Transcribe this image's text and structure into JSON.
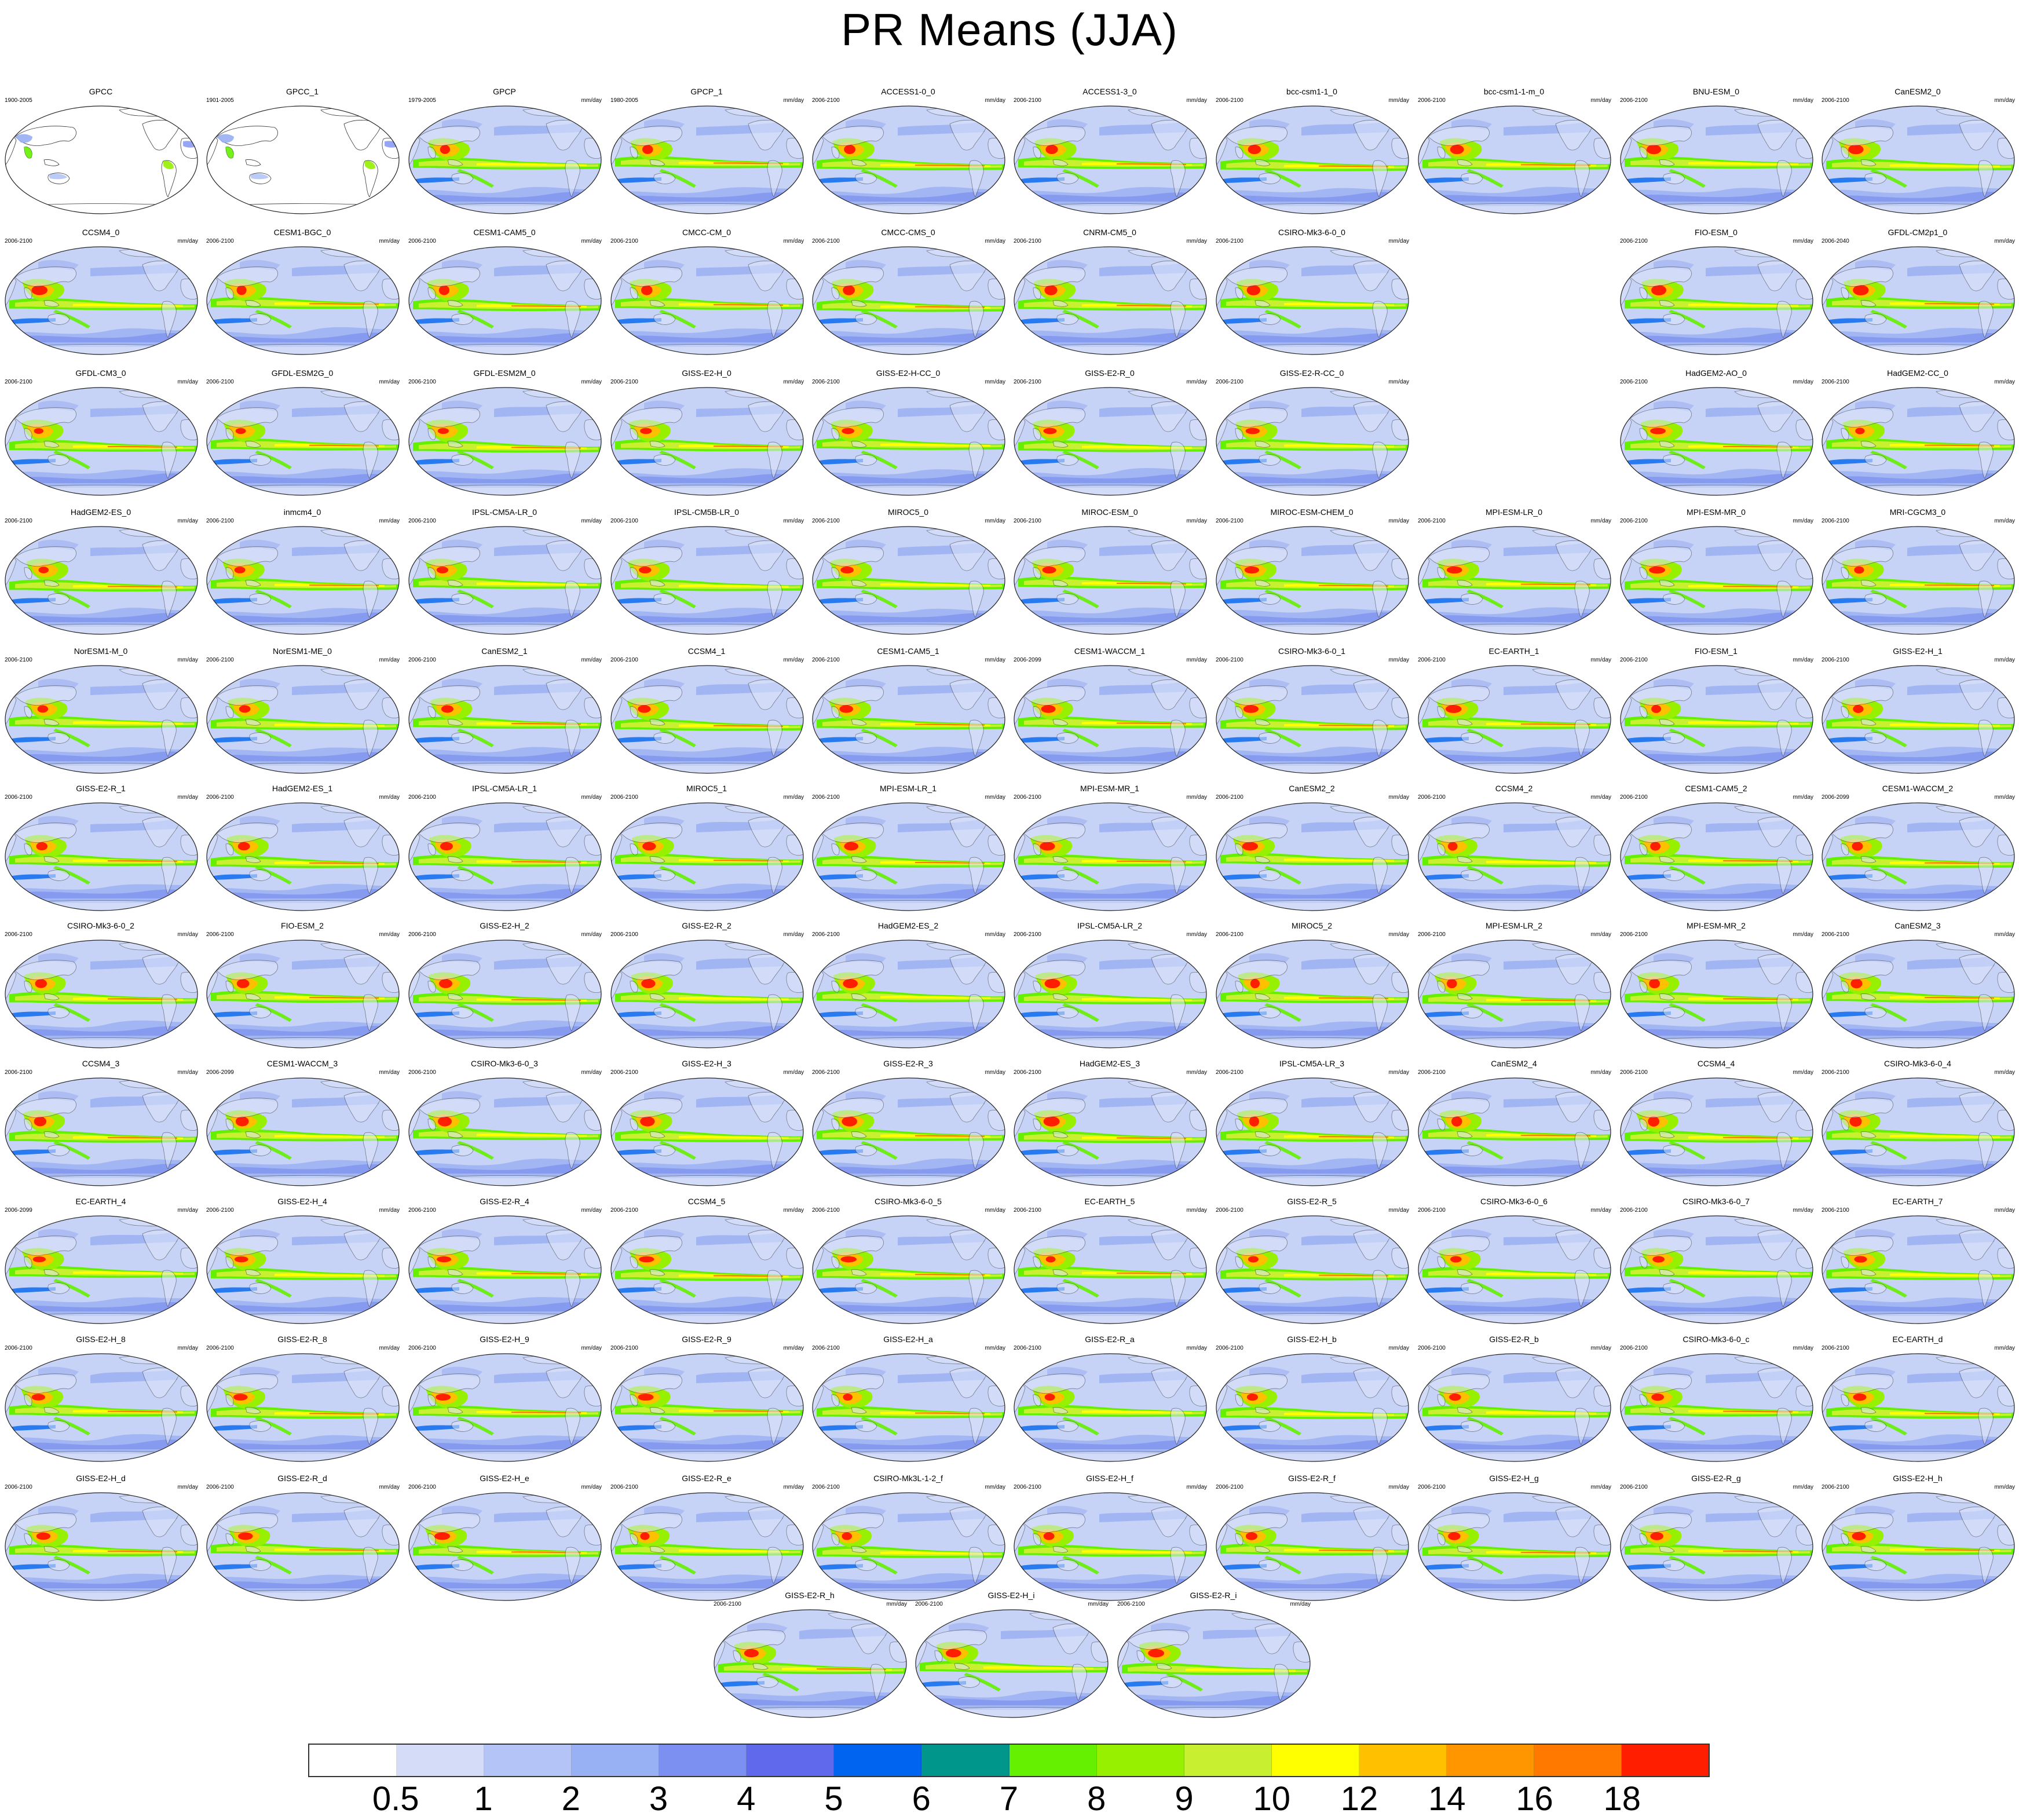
{
  "title": "PR Means (JJA)",
  "unit_label": "mm/day",
  "panels": [
    {
      "name": "GPCC",
      "years": "1900-2005",
      "obs": true
    },
    {
      "name": "GPCC_1",
      "years": "1901-2005",
      "obs": true
    },
    {
      "name": "GPCP",
      "years": "1979-2005"
    },
    {
      "name": "GPCP_1",
      "years": "1980-2005"
    },
    {
      "name": "ACCESS1-0_0",
      "years": "2006-2100"
    },
    {
      "name": "ACCESS1-3_0",
      "years": "2006-2100"
    },
    {
      "name": "bcc-csm1-1_0",
      "years": "2006-2100"
    },
    {
      "name": "bcc-csm1-1-m_0",
      "years": "2006-2100"
    },
    {
      "name": "BNU-ESM_0",
      "years": "2006-2100"
    },
    {
      "name": "CanESM2_0",
      "years": "2006-2100"
    },
    {
      "name": "CCSM4_0",
      "years": "2006-2100"
    },
    {
      "name": "CESM1-BGC_0",
      "years": "2006-2100"
    },
    {
      "name": "CESM1-CAM5_0",
      "years": "2006-2100"
    },
    {
      "name": "CMCC-CM_0",
      "years": "2006-2100"
    },
    {
      "name": "CMCC-CMS_0",
      "years": "2006-2100"
    },
    {
      "name": "CNRM-CM5_0",
      "years": "2006-2100"
    },
    {
      "name": "CSIRO-Mk3-6-0_0",
      "years": "2006-2100"
    },
    null,
    {
      "name": "FIO-ESM_0",
      "years": "2006-2100"
    },
    {
      "name": "GFDL-CM2p1_0",
      "years": "2006-2040"
    },
    {
      "name": "GFDL-CM3_0",
      "years": "2006-2100"
    },
    {
      "name": "GFDL-ESM2G_0",
      "years": "2006-2100"
    },
    {
      "name": "GFDL-ESM2M_0",
      "years": "2006-2100"
    },
    {
      "name": "GISS-E2-H_0",
      "years": "2006-2100"
    },
    {
      "name": "GISS-E2-H-CC_0",
      "years": "2006-2100"
    },
    {
      "name": "GISS-E2-R_0",
      "years": "2006-2100"
    },
    {
      "name": "GISS-E2-R-CC_0",
      "years": "2006-2100"
    },
    null,
    {
      "name": "HadGEM2-AO_0",
      "years": "2006-2100"
    },
    {
      "name": "HadGEM2-CC_0",
      "years": "2006-2100"
    },
    {
      "name": "HadGEM2-ES_0",
      "years": "2006-2100"
    },
    {
      "name": "inmcm4_0",
      "years": "2006-2100"
    },
    {
      "name": "IPSL-CM5A-LR_0",
      "years": "2006-2100"
    },
    {
      "name": "IPSL-CM5B-LR_0",
      "years": "2006-2100"
    },
    {
      "name": "MIROC5_0",
      "years": "2006-2100"
    },
    {
      "name": "MIROC-ESM_0",
      "years": "2006-2100"
    },
    {
      "name": "MIROC-ESM-CHEM_0",
      "years": "2006-2100"
    },
    {
      "name": "MPI-ESM-LR_0",
      "years": "2006-2100"
    },
    {
      "name": "MPI-ESM-MR_0",
      "years": "2006-2100"
    },
    {
      "name": "MRI-CGCM3_0",
      "years": "2006-2100"
    },
    {
      "name": "NorESM1-M_0",
      "years": "2006-2100"
    },
    {
      "name": "NorESM1-ME_0",
      "years": "2006-2100"
    },
    {
      "name": "CanESM2_1",
      "years": "2006-2100"
    },
    {
      "name": "CCSM4_1",
      "years": "2006-2100"
    },
    {
      "name": "CESM1-CAM5_1",
      "years": "2006-2100"
    },
    {
      "name": "CESM1-WACCM_1",
      "years": "2006-2099"
    },
    {
      "name": "CSIRO-Mk3-6-0_1",
      "years": "2006-2100"
    },
    {
      "name": "EC-EARTH_1",
      "years": "2006-2100"
    },
    {
      "name": "FIO-ESM_1",
      "years": "2006-2100"
    },
    {
      "name": "GISS-E2-H_1",
      "years": "2006-2100"
    },
    {
      "name": "GISS-E2-R_1",
      "years": "2006-2100"
    },
    {
      "name": "HadGEM2-ES_1",
      "years": "2006-2100"
    },
    {
      "name": "IPSL-CM5A-LR_1",
      "years": "2006-2100"
    },
    {
      "name": "MIROC5_1",
      "years": "2006-2100"
    },
    {
      "name": "MPI-ESM-LR_1",
      "years": "2006-2100"
    },
    {
      "name": "MPI-ESM-MR_1",
      "years": "2006-2100"
    },
    {
      "name": "CanESM2_2",
      "years": "2006-2100"
    },
    {
      "name": "CCSM4_2",
      "years": "2006-2100"
    },
    {
      "name": "CESM1-CAM5_2",
      "years": "2006-2100"
    },
    {
      "name": "CESM1-WACCM_2",
      "years": "2006-2099"
    },
    {
      "name": "CSIRO-Mk3-6-0_2",
      "years": "2006-2100"
    },
    {
      "name": "FIO-ESM_2",
      "years": "2006-2100"
    },
    {
      "name": "GISS-E2-H_2",
      "years": "2006-2100"
    },
    {
      "name": "GISS-E2-R_2",
      "years": "2006-2100"
    },
    {
      "name": "HadGEM2-ES_2",
      "years": "2006-2100"
    },
    {
      "name": "IPSL-CM5A-LR_2",
      "years": "2006-2100"
    },
    {
      "name": "MIROC5_2",
      "years": "2006-2100"
    },
    {
      "name": "MPI-ESM-LR_2",
      "years": "2006-2100"
    },
    {
      "name": "MPI-ESM-MR_2",
      "years": "2006-2100"
    },
    {
      "name": "CanESM2_3",
      "years": "2006-2100"
    },
    {
      "name": "CCSM4_3",
      "years": "2006-2100"
    },
    {
      "name": "CESM1-WACCM_3",
      "years": "2006-2099"
    },
    {
      "name": "CSIRO-Mk3-6-0_3",
      "years": "2006-2100"
    },
    {
      "name": "GISS-E2-H_3",
      "years": "2006-2100"
    },
    {
      "name": "GISS-E2-R_3",
      "years": "2006-2100"
    },
    {
      "name": "HadGEM2-ES_3",
      "years": "2006-2100"
    },
    {
      "name": "IPSL-CM5A-LR_3",
      "years": "2006-2100"
    },
    {
      "name": "CanESM2_4",
      "years": "2006-2100"
    },
    {
      "name": "CCSM4_4",
      "years": "2006-2100"
    },
    {
      "name": "CSIRO-Mk3-6-0_4",
      "years": "2006-2100"
    },
    {
      "name": "EC-EARTH_4",
      "years": "2006-2099"
    },
    {
      "name": "GISS-E2-H_4",
      "years": "2006-2100"
    },
    {
      "name": "GISS-E2-R_4",
      "years": "2006-2100"
    },
    {
      "name": "CCSM4_5",
      "years": "2006-2100"
    },
    {
      "name": "CSIRO-Mk3-6-0_5",
      "years": "2006-2100"
    },
    {
      "name": "EC-EARTH_5",
      "years": "2006-2100"
    },
    {
      "name": "GISS-E2-R_5",
      "years": "2006-2100"
    },
    {
      "name": "CSIRO-Mk3-6-0_6",
      "years": "2006-2100"
    },
    {
      "name": "CSIRO-Mk3-6-0_7",
      "years": "2006-2100"
    },
    {
      "name": "EC-EARTH_7",
      "years": "2006-2100"
    },
    {
      "name": "GISS-E2-H_8",
      "years": "2006-2100"
    },
    {
      "name": "GISS-E2-R_8",
      "years": "2006-2100"
    },
    {
      "name": "GISS-E2-H_9",
      "years": "2006-2100"
    },
    {
      "name": "GISS-E2-R_9",
      "years": "2006-2100"
    },
    {
      "name": "GISS-E2-H_a",
      "years": "2006-2100"
    },
    {
      "name": "GISS-E2-R_a",
      "years": "2006-2100"
    },
    {
      "name": "GISS-E2-H_b",
      "years": "2006-2100"
    },
    {
      "name": "GISS-E2-R_b",
      "years": "2006-2100"
    },
    {
      "name": "CSIRO-Mk3-6-0_c",
      "years": "2006-2100"
    },
    {
      "name": "EC-EARTH_d",
      "years": "2006-2100"
    },
    {
      "name": "GISS-E2-H_d",
      "years": "2006-2100"
    },
    {
      "name": "GISS-E2-R_d",
      "years": "2006-2100"
    },
    {
      "name": "GISS-E2-H_e",
      "years": "2006-2100"
    },
    {
      "name": "GISS-E2-R_e",
      "years": "2006-2100"
    },
    {
      "name": "CSIRO-Mk3L-1-2_f",
      "years": "2006-2100"
    },
    {
      "name": "GISS-E2-H_f",
      "years": "2006-2100"
    },
    {
      "name": "GISS-E2-R_f",
      "years": "2006-2100"
    },
    {
      "name": "GISS-E2-H_g",
      "years": "2006-2100"
    },
    {
      "name": "GISS-E2-R_g",
      "years": "2006-2100"
    },
    {
      "name": "GISS-E2-H_h",
      "years": "2006-2100"
    },
    {
      "name": "GISS-E2-R_h",
      "years": "2006-2100"
    },
    {
      "name": "GISS-E2-H_i",
      "years": "2006-2100"
    },
    {
      "name": "GISS-E2-R_i",
      "years": "2006-2100"
    }
  ],
  "colorbar": {
    "labels": [
      "0.5",
      "1",
      "2",
      "3",
      "4",
      "5",
      "6",
      "7",
      "8",
      "9",
      "10",
      "12",
      "14",
      "16",
      "18"
    ],
    "colors": [
      "#ffffff",
      "#d4dcf8",
      "#b4c4f6",
      "#98b0f4",
      "#7c90f2",
      "#6068ec",
      "#0064f0",
      "#00968c",
      "#64f000",
      "#96f000",
      "#c8f030",
      "#ffff00",
      "#ffc000",
      "#ff9600",
      "#ff7800",
      "#ff1e00"
    ]
  }
}
